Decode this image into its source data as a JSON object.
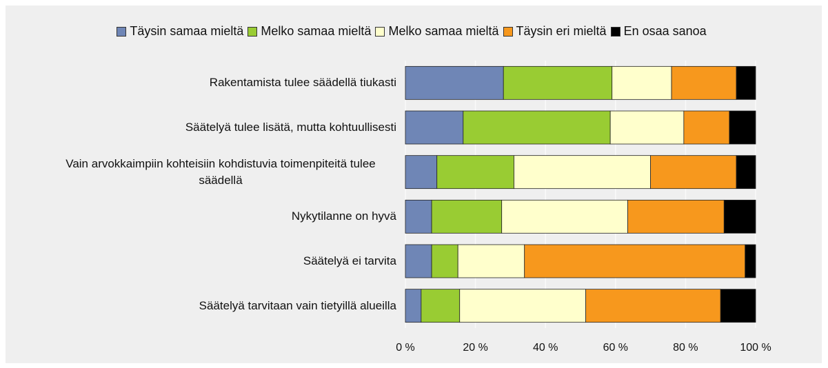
{
  "chart_data": {
    "type": "stacked-bar-horizontal",
    "categories": [
      "Rakentamista tulee säädellä tiukasti",
      "Säätelyä tulee lisätä, mutta kohtuullisesti",
      "Vain arvokkaimpiin kohteisiin kohdistuvia toimenpiteitä tulee säädellä",
      "Nykytilanne on hyvä",
      "Säätelyä ei tarvita",
      "Säätelyä tarvitaan vain tietyillä alueilla"
    ],
    "series": [
      {
        "name": "Täysin samaa mieltä",
        "color": "#6f86b6",
        "values": [
          28,
          16.5,
          9,
          7.5,
          7.5,
          4.5
        ]
      },
      {
        "name": "Melko samaa mieltä",
        "color": "#99cc33",
        "values": [
          31,
          42,
          22,
          20,
          7.5,
          11
        ]
      },
      {
        "name": "Melko samaa mieltä",
        "color": "#ffffcc",
        "values": [
          17,
          21,
          39,
          36,
          19,
          36
        ]
      },
      {
        "name": "Täysin eri mieltä",
        "color": "#f7981d",
        "values": [
          18.5,
          13,
          24.5,
          27.5,
          63,
          38.5
        ]
      },
      {
        "name": "En osaa sanoa",
        "color": "#000000",
        "values": [
          5.5,
          7.5,
          5.5,
          9,
          3,
          10
        ]
      }
    ],
    "xlim": [
      0,
      100
    ],
    "xticks": [
      {
        "value": 0,
        "label": "0 %"
      },
      {
        "value": 20,
        "label": "20 %"
      },
      {
        "value": 40,
        "label": "40 %"
      },
      {
        "value": 60,
        "label": "60 %"
      },
      {
        "value": 80,
        "label": "80 %"
      },
      {
        "value": 100,
        "label": "100 %"
      }
    ],
    "grid": true
  }
}
